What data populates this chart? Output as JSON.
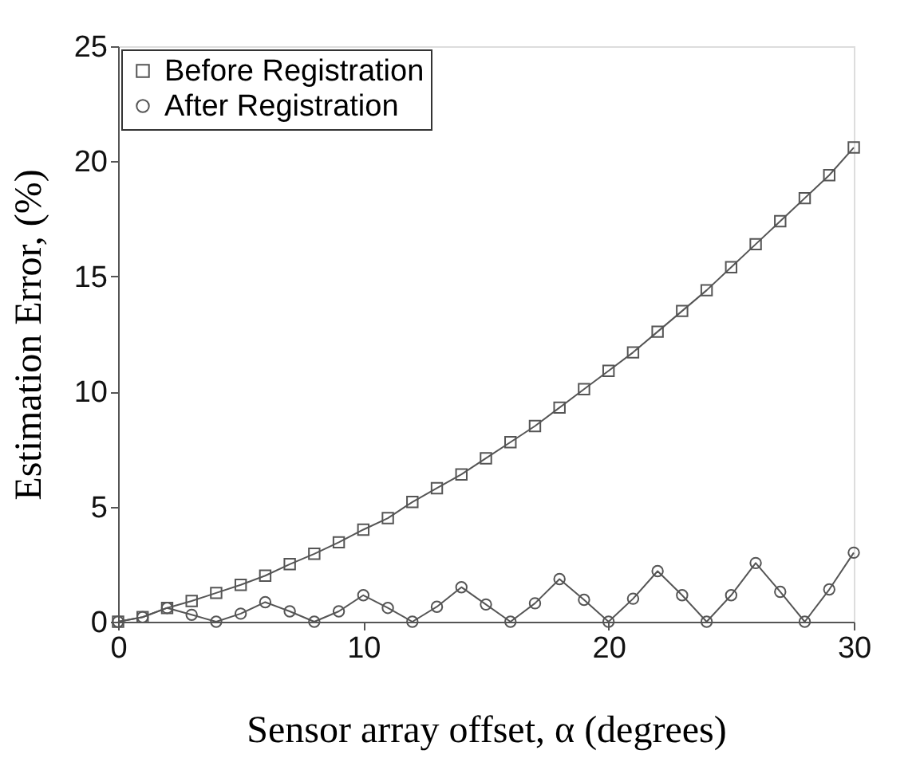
{
  "chart_data": {
    "type": "line",
    "xlabel": "Sensor array offset, α (degrees)",
    "ylabel": "Estimation Error, (%)",
    "x": [
      0,
      1,
      2,
      3,
      4,
      5,
      6,
      7,
      8,
      9,
      10,
      11,
      12,
      13,
      14,
      15,
      16,
      17,
      18,
      19,
      20,
      21,
      22,
      23,
      24,
      25,
      26,
      27,
      28,
      29,
      30
    ],
    "series": [
      {
        "name": "Before Registration",
        "color": "#555555",
        "marker": "square",
        "values": [
          0,
          0.2,
          0.6,
          0.9,
          1.25,
          1.6,
          2.0,
          2.5,
          2.95,
          3.45,
          4.0,
          4.5,
          5.2,
          5.8,
          6.4,
          7.1,
          7.8,
          8.5,
          9.3,
          10.1,
          10.9,
          11.7,
          12.6,
          13.5,
          14.4,
          15.4,
          16.4,
          17.4,
          18.4,
          19.4,
          20.6
        ]
      },
      {
        "name": "After Registration",
        "color": "#555555",
        "marker": "circle",
        "values": [
          0,
          0.2,
          0.6,
          0.3,
          0,
          0.35,
          0.85,
          0.45,
          0,
          0.45,
          1.15,
          0.6,
          0,
          0.65,
          1.5,
          0.75,
          0,
          0.8,
          1.85,
          0.95,
          0,
          1.0,
          2.2,
          1.15,
          0,
          1.15,
          2.55,
          1.3,
          0,
          1.4,
          3.0
        ]
      }
    ],
    "xlim": [
      0,
      30
    ],
    "xticks": [
      0,
      10,
      20,
      30
    ],
    "ylim": [
      0,
      25
    ],
    "yticks": [
      0,
      5,
      10,
      15,
      20,
      25
    ],
    "grid": false,
    "legend": "top left",
    "line_style": "solid"
  }
}
